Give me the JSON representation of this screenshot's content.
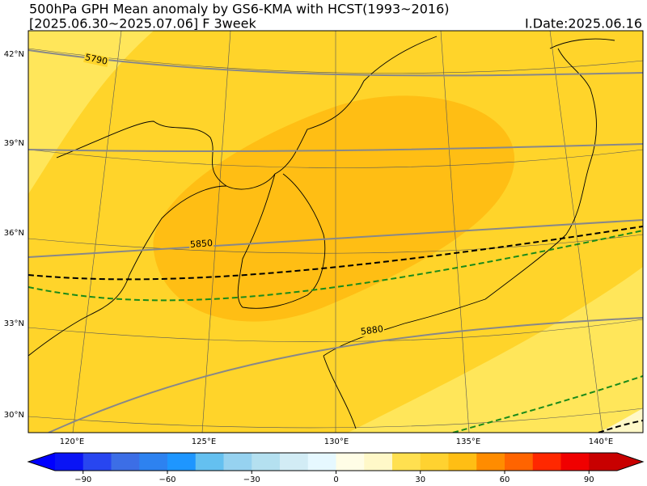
{
  "header": {
    "title": "500hPa GPH Mean anomaly by GS6-KMA with HCST(1993~2016)",
    "period": "[2025.06.30~2025.07.06] F 3week",
    "init_date": "I.Date:2025.06.16"
  },
  "map": {
    "lat_labels": [
      "42°N",
      "39°N",
      "36°N",
      "33°N",
      "30°N"
    ],
    "lon_labels": [
      "120°E",
      "125°E",
      "130°E",
      "135°E",
      "140°E"
    ],
    "contour_labels": [
      "5790",
      "5850",
      "5880"
    ]
  },
  "colorbar": {
    "lim": [
      -100,
      100
    ],
    "ticks": [
      {
        "value": -90,
        "label": "−90"
      },
      {
        "value": -60,
        "label": "−60"
      },
      {
        "value": -30,
        "label": "−30"
      },
      0,
      30,
      60,
      90
    ],
    "colors": [
      "#0a14f5",
      "#2846f0",
      "#3c6ee6",
      "#2d82f0",
      "#1e96ff",
      "#64c0f0",
      "#96d2f0",
      "#b4e0f0",
      "#d2ecf5",
      "#e6f8ff",
      "#fffde6",
      "#fff8c8",
      "#ffe050",
      "#ffd230",
      "#ffbe14",
      "#ff8c00",
      "#ff6400",
      "#ff2800",
      "#f00000",
      "#c80000"
    ],
    "under_color": "#0000ff",
    "over_color": "#c80000"
  }
}
